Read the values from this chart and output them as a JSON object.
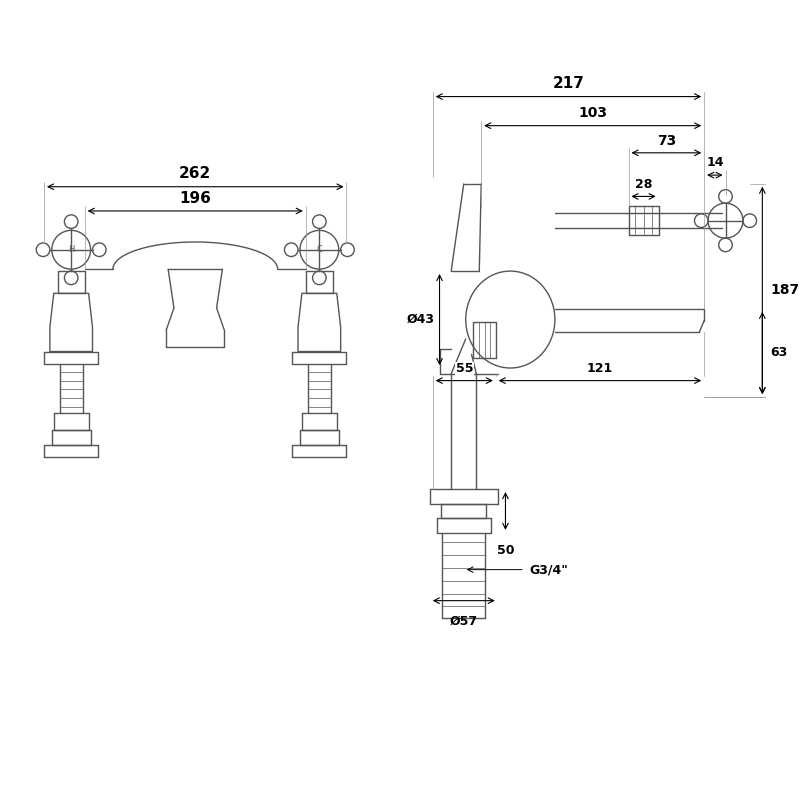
{
  "bg_color": "#ffffff",
  "line_color": "#555555",
  "dim_color": "#000000",
  "fig_width": 8.0,
  "fig_height": 8.0,
  "dims": {
    "262": "262",
    "196": "196",
    "217": "217",
    "103": "103",
    "73": "73",
    "14": "14",
    "28": "28",
    "43": "Ø43",
    "187": "187",
    "55": "55",
    "121": "121",
    "63": "63",
    "50": "50",
    "G34": "G3/4\"",
    "57": "Ø57"
  }
}
